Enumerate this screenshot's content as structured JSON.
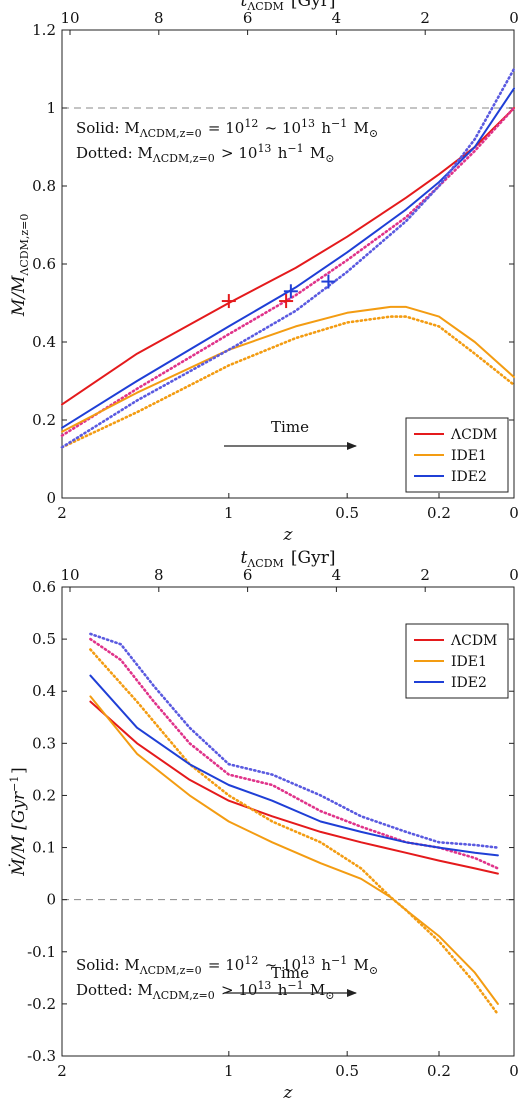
{
  "colors": {
    "LCDM": "#e41a1c",
    "IDE1": "#f39c12",
    "IDE2": "#1f3fd6",
    "IDE2_dotted": "#5a5ae0",
    "LCDM_dotted": "#e0338a"
  },
  "chart_data": [
    {
      "type": "line",
      "xlabel": "z",
      "ylabel": "M/M_ΛCDM,z=0",
      "top_axis_label": "t_ΛCDM [Gyr]",
      "x_ticks": [
        "2",
        "1",
        "0.5",
        "0.2",
        "0"
      ],
      "top_ticks": [
        "10",
        "8",
        "6",
        "4",
        "2",
        "0"
      ],
      "y_ticks": [
        "0",
        "0.2",
        "0.4",
        "0.6",
        "0.8",
        "1",
        "1.2"
      ],
      "ylim": [
        0,
        1.2
      ],
      "x_scale": "log(1+z)",
      "reference_line": 1,
      "annotations": {
        "solid": "Solid:  M_ΛCDM,z=0 = 10^12 ~ 10^13 h^−1 M_⊙",
        "dotted": "Dotted:  M_ΛCDM,z=0 > 10^13 h^−1 M_⊙",
        "time": "Time"
      },
      "legend": {
        "position": "bottom-right",
        "entries": [
          "ΛCDM",
          "IDE1",
          "IDE2"
        ]
      },
      "series": [
        {
          "name": "ΛCDM",
          "style": "solid",
          "color": "LCDM",
          "x": [
            2,
            1.5,
            1,
            0.7,
            0.5,
            0.3,
            0.2,
            0.1,
            0
          ],
          "y": [
            0.24,
            0.37,
            0.5,
            0.59,
            0.67,
            0.77,
            0.83,
            0.9,
            1.0
          ]
        },
        {
          "name": "ΛCDM",
          "style": "dotted",
          "color": "LCDM_dotted",
          "x": [
            2,
            1.5,
            1,
            0.7,
            0.5,
            0.3,
            0.2,
            0.1,
            0
          ],
          "y": [
            0.16,
            0.28,
            0.42,
            0.52,
            0.61,
            0.72,
            0.8,
            0.89,
            1.0
          ]
        },
        {
          "name": "IDE1",
          "style": "solid",
          "color": "IDE1",
          "x": [
            2,
            1.5,
            1,
            0.7,
            0.5,
            0.35,
            0.3,
            0.2,
            0.1,
            0
          ],
          "y": [
            0.17,
            0.27,
            0.38,
            0.44,
            0.475,
            0.49,
            0.49,
            0.465,
            0.4,
            0.31
          ]
        },
        {
          "name": "IDE1",
          "style": "dotted",
          "color": "IDE1",
          "x": [
            2,
            1.5,
            1,
            0.7,
            0.5,
            0.35,
            0.3,
            0.2,
            0.1,
            0
          ],
          "y": [
            0.13,
            0.22,
            0.34,
            0.41,
            0.45,
            0.465,
            0.465,
            0.44,
            0.37,
            0.29
          ]
        },
        {
          "name": "IDE2",
          "style": "solid",
          "color": "IDE2",
          "x": [
            2,
            1.5,
            1,
            0.7,
            0.5,
            0.3,
            0.2,
            0.1,
            0
          ],
          "y": [
            0.18,
            0.3,
            0.44,
            0.54,
            0.63,
            0.74,
            0.81,
            0.9,
            1.05
          ]
        },
        {
          "name": "IDE2",
          "style": "dotted",
          "color": "IDE2_dotted",
          "x": [
            2,
            1.5,
            1,
            0.7,
            0.5,
            0.3,
            0.2,
            0.1,
            0
          ],
          "y": [
            0.13,
            0.25,
            0.38,
            0.48,
            0.58,
            0.71,
            0.8,
            0.92,
            1.1
          ]
        }
      ],
      "markers": [
        {
          "x": 1.0,
          "y": 0.505,
          "color": "LCDM"
        },
        {
          "x": 0.74,
          "y": 0.505,
          "color": "LCDM"
        },
        {
          "x": 0.72,
          "y": 0.53,
          "color": "IDE2"
        },
        {
          "x": 0.57,
          "y": 0.555,
          "color": "IDE2"
        }
      ]
    },
    {
      "type": "line",
      "xlabel": "z",
      "ylabel": "Ṁ/M [Gyr^−1]",
      "top_axis_label": "t_ΛCDM [Gyr]",
      "x_ticks": [
        "2",
        "1",
        "0.5",
        "0.2",
        "0"
      ],
      "top_ticks": [
        "10",
        "8",
        "6",
        "4",
        "2",
        "0"
      ],
      "y_ticks": [
        "-0.3",
        "-0.2",
        "-0.1",
        "0",
        "0.1",
        "0.2",
        "0.3",
        "0.4",
        "0.5",
        "0.6"
      ],
      "ylim": [
        -0.3,
        0.6
      ],
      "x_scale": "log(1+z)",
      "reference_line": 0,
      "annotations": {
        "solid": "Solid:  M_ΛCDM,z=0 = 10^12 ~ 10^13 h^−1 M_⊙",
        "dotted": "Dotted:  M_ΛCDM,z=0 > 10^13 h^−1 M_⊙",
        "time": "Time"
      },
      "legend": {
        "position": "top-right",
        "entries": [
          "ΛCDM",
          "IDE1",
          "IDE2"
        ]
      },
      "series": [
        {
          "name": "ΛCDM",
          "style": "solid",
          "color": "LCDM",
          "x": [
            1.8,
            1.5,
            1.2,
            1.0,
            0.8,
            0.6,
            0.45,
            0.3,
            0.2,
            0.1,
            0.04
          ],
          "y": [
            0.38,
            0.3,
            0.23,
            0.19,
            0.16,
            0.13,
            0.11,
            0.09,
            0.075,
            0.06,
            0.05
          ]
        },
        {
          "name": "ΛCDM",
          "style": "dotted",
          "color": "LCDM_dotted",
          "x": [
            1.8,
            1.6,
            1.4,
            1.2,
            1.0,
            0.8,
            0.6,
            0.45,
            0.3,
            0.2,
            0.1,
            0.04
          ],
          "y": [
            0.5,
            0.46,
            0.38,
            0.3,
            0.24,
            0.22,
            0.17,
            0.14,
            0.11,
            0.1,
            0.08,
            0.06
          ]
        },
        {
          "name": "IDE1",
          "style": "solid",
          "color": "IDE1",
          "x": [
            1.8,
            1.5,
            1.2,
            1.0,
            0.8,
            0.6,
            0.45,
            0.35,
            0.3,
            0.2,
            0.1,
            0.04
          ],
          "y": [
            0.39,
            0.28,
            0.2,
            0.15,
            0.11,
            0.07,
            0.04,
            0.005,
            -0.02,
            -0.07,
            -0.14,
            -0.2
          ]
        },
        {
          "name": "IDE1",
          "style": "dotted",
          "color": "IDE1",
          "x": [
            1.8,
            1.5,
            1.2,
            1.0,
            0.8,
            0.6,
            0.45,
            0.35,
            0.3,
            0.2,
            0.1,
            0.04
          ],
          "y": [
            0.48,
            0.38,
            0.26,
            0.2,
            0.15,
            0.11,
            0.06,
            0.005,
            -0.02,
            -0.08,
            -0.16,
            -0.22
          ]
        },
        {
          "name": "IDE2",
          "style": "solid",
          "color": "IDE2",
          "x": [
            1.8,
            1.5,
            1.2,
            1.0,
            0.8,
            0.6,
            0.45,
            0.3,
            0.2,
            0.1,
            0.04
          ],
          "y": [
            0.43,
            0.33,
            0.26,
            0.22,
            0.19,
            0.15,
            0.13,
            0.11,
            0.1,
            0.09,
            0.085
          ]
        },
        {
          "name": "IDE2",
          "style": "dotted",
          "color": "IDE2_dotted",
          "x": [
            1.8,
            1.6,
            1.4,
            1.2,
            1.0,
            0.8,
            0.6,
            0.45,
            0.3,
            0.2,
            0.1,
            0.04
          ],
          "y": [
            0.51,
            0.49,
            0.41,
            0.33,
            0.26,
            0.24,
            0.2,
            0.16,
            0.13,
            0.11,
            0.105,
            0.1
          ]
        }
      ]
    }
  ]
}
